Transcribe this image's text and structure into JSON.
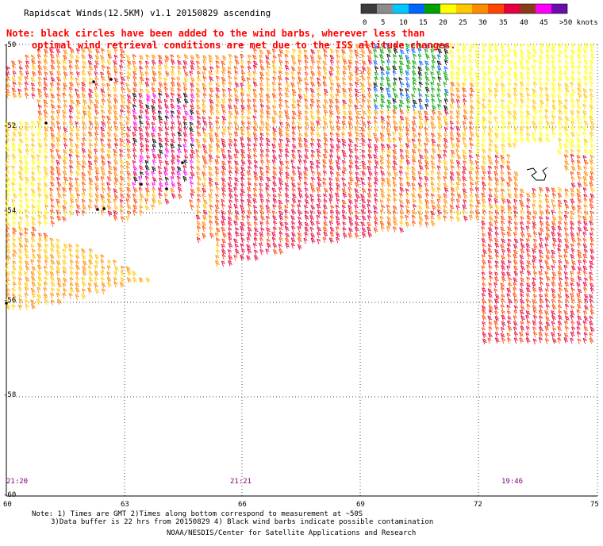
{
  "header": {
    "title": "Rapidscat Winds(12.5KM) v1.1 20150829 ascending"
  },
  "note": {
    "line1": "Note: black circles have been added to the wind barbs, wherever less than",
    "line2": "optimal wind retrieval conditions are met due to the ISS altitude changes."
  },
  "legend": {
    "labels": [
      "0",
      "5",
      "10",
      "15",
      "20",
      "25",
      "30",
      "35",
      "40",
      "45",
      ">50 knots"
    ],
    "colors": [
      "#3c3c3c",
      "#8c8c8c",
      "#00c8ff",
      "#0064ff",
      "#00a000",
      "#ffff00",
      "#ffc800",
      "#ff8c00",
      "#ff4600",
      "#e6003c",
      "#8b3a1a",
      "#ff00ff",
      "#6a0dad"
    ]
  },
  "axes": {
    "lat_labels": [
      "-50",
      "-52",
      "-54",
      "-56",
      "-58",
      "-60"
    ],
    "lon_labels": [
      "60",
      "63",
      "66",
      "69",
      "72",
      "75"
    ],
    "lat_range": [
      -60,
      -50
    ],
    "lon_range": [
      60,
      75
    ]
  },
  "times": {
    "left": "21:20",
    "mid": "21:21",
    "right": "19:46"
  },
  "footer": {
    "line1": "Note: 1) Times are GMT 2)Times along bottom correspond to measurement at ~50S",
    "line2": "3)Data buffer is 22 hrs from 20150829 4) Black wind barbs indicate possible contamination",
    "credit": "NOAA/NESDIS/Center for Satellite Applications and Research"
  }
}
